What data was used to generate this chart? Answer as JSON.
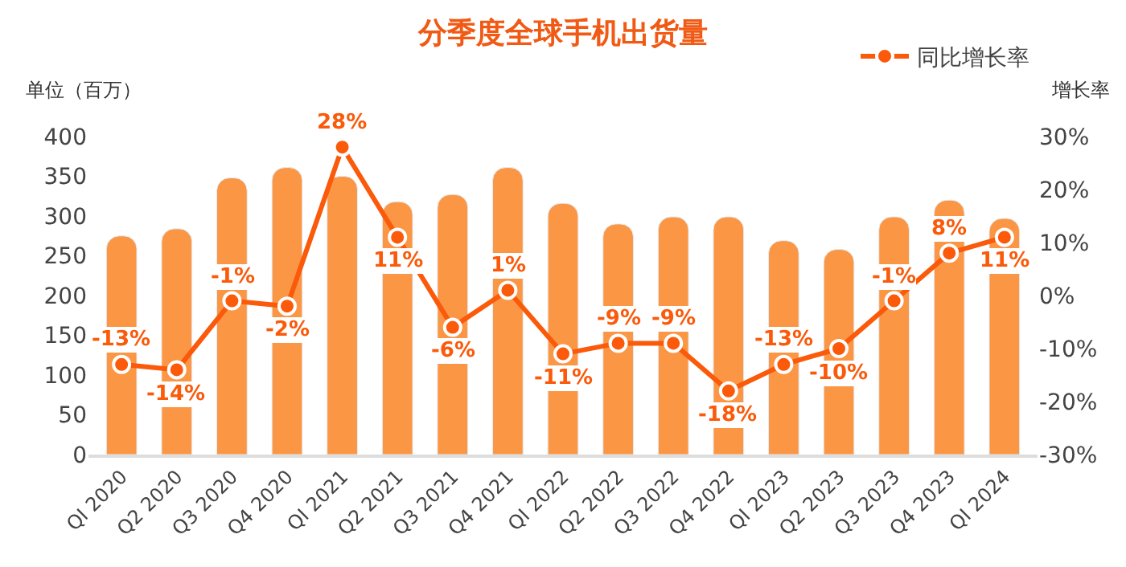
{
  "chart_data": {
    "type": "bar",
    "title": "分季度全球手机出货量",
    "ylabel": "单位（百万）",
    "y2label": "增长率",
    "categories": [
      "QI 2020",
      "Q2 2020",
      "Q3 2020",
      "Q4 2020",
      "QI 2021",
      "Q2 2021",
      "Q3 2021",
      "Q4 2021",
      "QI 2022",
      "Q2 2022",
      "Q3 2022",
      "Q4 2022",
      "QI 2023",
      "Q2 2023",
      "Q3 2023",
      "Q4 2023",
      "QI 2024"
    ],
    "series": [
      {
        "color": "#fb9645",
        "values": [
          275,
          284,
          348,
          361,
          350,
          318,
          327,
          361,
          316,
          290,
          299,
          299,
          269,
          258,
          299,
          320,
          297
        ]
      },
      {
        "type": "line",
        "name": "同比增长率",
        "axis": "y2",
        "color": "#fa5a0a",
        "marker": "circle",
        "values": [
          -13,
          -14,
          -1,
          -2,
          28,
          11,
          -6,
          1,
          -11,
          -9,
          -9,
          -18,
          -13,
          -10,
          -1,
          8,
          11
        ],
        "value_labels": [
          "-13%",
          "-14%",
          "-1%",
          "-2%",
          "28%",
          "11%",
          "-6%",
          "1%",
          "-11%",
          "-9%",
          "-9%",
          "-18%",
          "-13%",
          "-10%",
          "-1%",
          "8%",
          "11%"
        ]
      }
    ],
    "ylim": [
      0,
      400
    ],
    "yticks": [
      0,
      50,
      100,
      150,
      200,
      250,
      300,
      350,
      400
    ],
    "y2lim": [
      -30,
      30
    ],
    "y2ticks": [
      {
        "value": -30,
        "label": "-30%"
      },
      {
        "value": -20,
        "label": "-20%"
      },
      {
        "value": -10,
        "label": "-10%"
      },
      {
        "value": 0,
        "label": "0%"
      },
      {
        "value": 10,
        "label": "10%"
      },
      {
        "value": 20,
        "label": "20%"
      },
      {
        "value": 30,
        "label": "30%"
      }
    ],
    "legend": "top right"
  }
}
